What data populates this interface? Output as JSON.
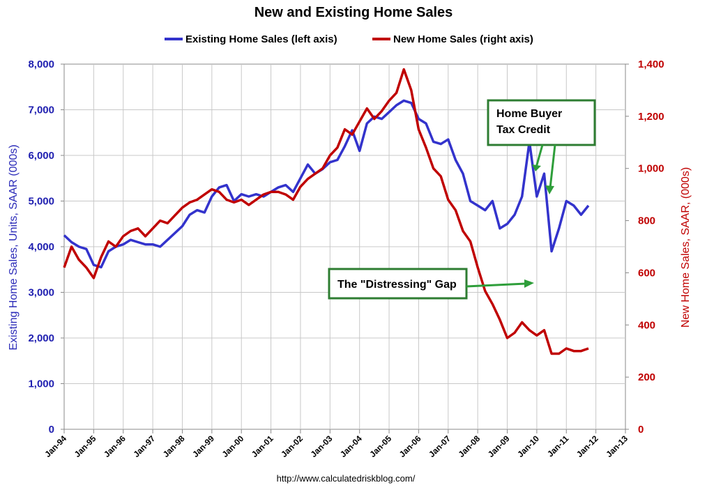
{
  "chart_data": {
    "type": "line",
    "title": "New and Existing Home Sales",
    "source": "http://www.calculatedriskblog.com/",
    "legend_position": "top-center",
    "grid": true,
    "y_left": {
      "label": "Existing Home Sales, Units, SAAR (000s)",
      "min": 0,
      "max": 8000,
      "ticks": [
        "0",
        "1,000",
        "2,000",
        "3,000",
        "4,000",
        "5,000",
        "6,000",
        "7,000",
        "8,000"
      ]
    },
    "y_right": {
      "label": "New Home Sales, SAAR, (000s)",
      "min": 0,
      "max": 1400,
      "ticks": [
        "0",
        "200",
        "400",
        "600",
        "800",
        "1,000",
        "1,200",
        "1,400"
      ]
    },
    "x_ticks": [
      "Jan-94",
      "Jan-95",
      "Jan-96",
      "Jan-97",
      "Jan-98",
      "Jan-99",
      "Jan-00",
      "Jan-01",
      "Jan-02",
      "Jan-03",
      "Jan-04",
      "Jan-05",
      "Jan-06",
      "Jan-07",
      "Jan-08",
      "Jan-09",
      "Jan-10",
      "Jan-11",
      "Jan-12",
      "Jan-13"
    ],
    "series": [
      {
        "name": "Existing Home Sales (left axis)",
        "axis": "left",
        "color": "#3333cc",
        "points": [
          [
            "1994-01",
            4250
          ],
          [
            "1994-04",
            4100
          ],
          [
            "1994-07",
            4000
          ],
          [
            "1994-10",
            3950
          ],
          [
            "1995-01",
            3600
          ],
          [
            "1995-04",
            3550
          ],
          [
            "1995-07",
            3900
          ],
          [
            "1995-10",
            4000
          ],
          [
            "1996-01",
            4050
          ],
          [
            "1996-04",
            4150
          ],
          [
            "1996-07",
            4100
          ],
          [
            "1996-10",
            4050
          ],
          [
            "1997-01",
            4050
          ],
          [
            "1997-04",
            4000
          ],
          [
            "1997-07",
            4150
          ],
          [
            "1997-10",
            4300
          ],
          [
            "1998-01",
            4450
          ],
          [
            "1998-04",
            4700
          ],
          [
            "1998-07",
            4800
          ],
          [
            "1998-10",
            4750
          ],
          [
            "1999-01",
            5100
          ],
          [
            "1999-04",
            5300
          ],
          [
            "1999-07",
            5350
          ],
          [
            "1999-10",
            5000
          ],
          [
            "2000-01",
            5150
          ],
          [
            "2000-04",
            5100
          ],
          [
            "2000-07",
            5150
          ],
          [
            "2000-10",
            5100
          ],
          [
            "2001-01",
            5200
          ],
          [
            "2001-04",
            5300
          ],
          [
            "2001-07",
            5350
          ],
          [
            "2001-10",
            5200
          ],
          [
            "2002-01",
            5500
          ],
          [
            "2002-04",
            5800
          ],
          [
            "2002-07",
            5600
          ],
          [
            "2002-10",
            5700
          ],
          [
            "2003-01",
            5850
          ],
          [
            "2003-04",
            5900
          ],
          [
            "2003-07",
            6200
          ],
          [
            "2003-10",
            6550
          ],
          [
            "2004-01",
            6100
          ],
          [
            "2004-04",
            6700
          ],
          [
            "2004-07",
            6850
          ],
          [
            "2004-10",
            6800
          ],
          [
            "2005-01",
            6950
          ],
          [
            "2005-04",
            7100
          ],
          [
            "2005-07",
            7200
          ],
          [
            "2005-10",
            7150
          ],
          [
            "2006-01",
            6800
          ],
          [
            "2006-04",
            6700
          ],
          [
            "2006-07",
            6300
          ],
          [
            "2006-10",
            6250
          ],
          [
            "2007-01",
            6350
          ],
          [
            "2007-04",
            5900
          ],
          [
            "2007-07",
            5600
          ],
          [
            "2007-10",
            5000
          ],
          [
            "2008-01",
            4900
          ],
          [
            "2008-04",
            4800
          ],
          [
            "2008-07",
            5000
          ],
          [
            "2008-10",
            4400
          ],
          [
            "2009-01",
            4500
          ],
          [
            "2009-04",
            4700
          ],
          [
            "2009-07",
            5100
          ],
          [
            "2009-10",
            6300
          ],
          [
            "2010-01",
            5100
          ],
          [
            "2010-04",
            5600
          ],
          [
            "2010-07",
            3900
          ],
          [
            "2010-10",
            4400
          ],
          [
            "2011-01",
            5000
          ],
          [
            "2011-04",
            4900
          ],
          [
            "2011-07",
            4700
          ],
          [
            "2011-10",
            4900
          ]
        ]
      },
      {
        "name": "New Home Sales (right axis)",
        "axis": "right",
        "color": "#c00000",
        "points": [
          [
            "1994-01",
            620
          ],
          [
            "1994-04",
            700
          ],
          [
            "1994-07",
            650
          ],
          [
            "1994-10",
            620
          ],
          [
            "1995-01",
            580
          ],
          [
            "1995-04",
            660
          ],
          [
            "1995-07",
            720
          ],
          [
            "1995-10",
            700
          ],
          [
            "1996-01",
            740
          ],
          [
            "1996-04",
            760
          ],
          [
            "1996-07",
            770
          ],
          [
            "1996-10",
            740
          ],
          [
            "1997-01",
            770
          ],
          [
            "1997-04",
            800
          ],
          [
            "1997-07",
            790
          ],
          [
            "1997-10",
            820
          ],
          [
            "1998-01",
            850
          ],
          [
            "1998-04",
            870
          ],
          [
            "1998-07",
            880
          ],
          [
            "1998-10",
            900
          ],
          [
            "1999-01",
            920
          ],
          [
            "1999-04",
            910
          ],
          [
            "1999-07",
            880
          ],
          [
            "1999-10",
            870
          ],
          [
            "2000-01",
            880
          ],
          [
            "2000-04",
            860
          ],
          [
            "2000-07",
            880
          ],
          [
            "2000-10",
            900
          ],
          [
            "2001-01",
            910
          ],
          [
            "2001-04",
            910
          ],
          [
            "2001-07",
            900
          ],
          [
            "2001-10",
            880
          ],
          [
            "2002-01",
            930
          ],
          [
            "2002-04",
            960
          ],
          [
            "2002-07",
            980
          ],
          [
            "2002-10",
            1000
          ],
          [
            "2003-01",
            1050
          ],
          [
            "2003-04",
            1080
          ],
          [
            "2003-07",
            1150
          ],
          [
            "2003-10",
            1130
          ],
          [
            "2004-01",
            1180
          ],
          [
            "2004-04",
            1230
          ],
          [
            "2004-07",
            1190
          ],
          [
            "2004-10",
            1220
          ],
          [
            "2005-01",
            1260
          ],
          [
            "2005-04",
            1290
          ],
          [
            "2005-07",
            1380
          ],
          [
            "2005-10",
            1300
          ],
          [
            "2006-01",
            1150
          ],
          [
            "2006-04",
            1080
          ],
          [
            "2006-07",
            1000
          ],
          [
            "2006-10",
            970
          ],
          [
            "2007-01",
            880
          ],
          [
            "2007-04",
            840
          ],
          [
            "2007-07",
            760
          ],
          [
            "2007-10",
            720
          ],
          [
            "2008-01",
            620
          ],
          [
            "2008-04",
            530
          ],
          [
            "2008-07",
            480
          ],
          [
            "2008-10",
            420
          ],
          [
            "2009-01",
            350
          ],
          [
            "2009-04",
            370
          ],
          [
            "2009-07",
            410
          ],
          [
            "2009-10",
            380
          ],
          [
            "2010-01",
            360
          ],
          [
            "2010-04",
            380
          ],
          [
            "2010-07",
            290
          ],
          [
            "2010-10",
            290
          ],
          [
            "2011-01",
            310
          ],
          [
            "2011-04",
            300
          ],
          [
            "2011-07",
            300
          ],
          [
            "2011-10",
            310
          ]
        ]
      }
    ],
    "annotations": [
      {
        "text": [
          "Home Buyer",
          "Tax Credit"
        ]
      },
      {
        "text": [
          "The \"Distressing\" Gap"
        ]
      }
    ]
  }
}
